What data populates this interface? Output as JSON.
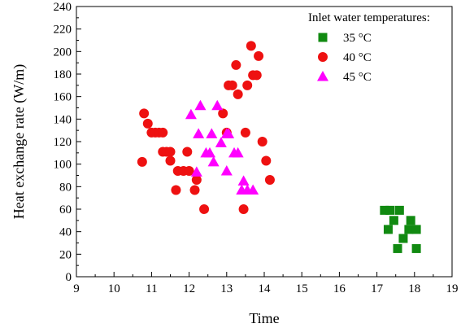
{
  "chart_data": {
    "type": "scatter",
    "xlabel": "Time",
    "ylabel": "Heat exchange rate (W/m)",
    "xlim": [
      9,
      19
    ],
    "ylim": [
      0,
      240
    ],
    "xticks": [
      "9",
      "10",
      "11",
      "12",
      "13",
      "14",
      "15",
      "16",
      "17",
      "18",
      "19"
    ],
    "yticks": [
      "0",
      "20",
      "40",
      "60",
      "80",
      "100",
      "120",
      "140",
      "160",
      "180",
      "200",
      "220",
      "240"
    ],
    "grid": false,
    "legend": {
      "title": "Inlet water temperatures:",
      "placement": "top-right"
    },
    "series": [
      {
        "name": "35 °C",
        "marker": "square",
        "color": "#118a11",
        "points": [
          [
            17.2,
            59
          ],
          [
            17.35,
            59
          ],
          [
            17.6,
            59
          ],
          [
            17.45,
            50
          ],
          [
            17.9,
            50
          ],
          [
            17.3,
            42
          ],
          [
            17.85,
            42
          ],
          [
            18.05,
            42
          ],
          [
            17.7,
            34
          ],
          [
            17.55,
            25
          ],
          [
            18.05,
            25
          ]
        ]
      },
      {
        "name": "40 °C",
        "marker": "circle",
        "color": "#ee1111",
        "points": [
          [
            10.8,
            145
          ],
          [
            10.9,
            136
          ],
          [
            11.0,
            128
          ],
          [
            11.1,
            128
          ],
          [
            11.2,
            128
          ],
          [
            11.3,
            128
          ],
          [
            10.75,
            102
          ],
          [
            11.3,
            111
          ],
          [
            11.4,
            111
          ],
          [
            11.5,
            111
          ],
          [
            11.5,
            103
          ],
          [
            11.7,
            94
          ],
          [
            11.85,
            94
          ],
          [
            12.0,
            94
          ],
          [
            11.95,
            111
          ],
          [
            11.65,
            77
          ],
          [
            12.15,
            77
          ],
          [
            12.2,
            86
          ],
          [
            12.4,
            60
          ],
          [
            12.9,
            145
          ],
          [
            13.05,
            170
          ],
          [
            13.15,
            170
          ],
          [
            13.25,
            188
          ],
          [
            13.0,
            128
          ],
          [
            13.5,
            128
          ],
          [
            13.3,
            162
          ],
          [
            13.55,
            170
          ],
          [
            13.65,
            205
          ],
          [
            13.7,
            179
          ],
          [
            13.8,
            179
          ],
          [
            13.85,
            196
          ],
          [
            13.95,
            120
          ],
          [
            14.05,
            103
          ],
          [
            14.15,
            86
          ],
          [
            13.45,
            60
          ]
        ]
      },
      {
        "name": "45 °C",
        "marker": "triangle",
        "color": "#ff00ff",
        "points": [
          [
            12.05,
            144
          ],
          [
            12.3,
            152
          ],
          [
            12.75,
            152
          ],
          [
            12.25,
            127
          ],
          [
            12.6,
            127
          ],
          [
            13.0,
            127
          ],
          [
            13.05,
            127
          ],
          [
            12.85,
            119
          ],
          [
            12.45,
            110
          ],
          [
            12.55,
            110
          ],
          [
            13.2,
            110
          ],
          [
            13.3,
            110
          ],
          [
            12.65,
            102
          ],
          [
            13.0,
            94
          ],
          [
            12.2,
            93
          ],
          [
            13.45,
            85
          ],
          [
            13.4,
            77
          ],
          [
            13.55,
            77
          ],
          [
            13.7,
            77
          ]
        ]
      }
    ]
  }
}
